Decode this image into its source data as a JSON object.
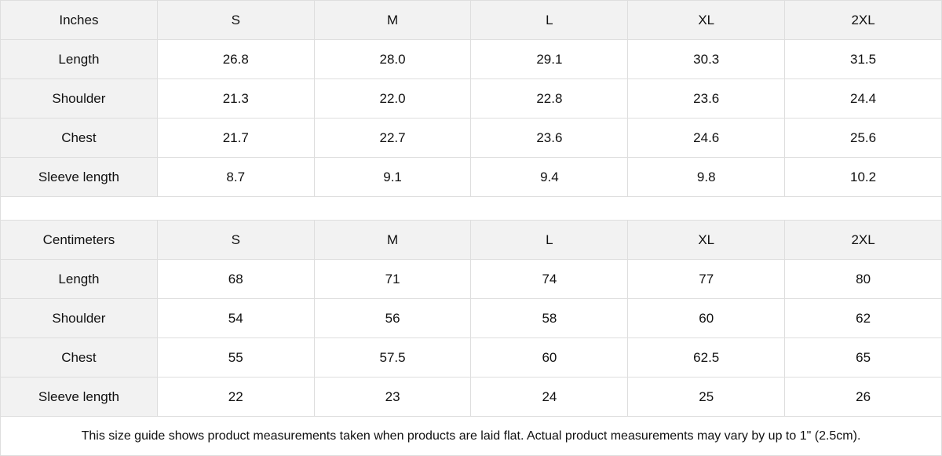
{
  "tables": [
    {
      "unit": "Inches",
      "sizes": [
        "S",
        "M",
        "L",
        "XL",
        "2XL"
      ],
      "rows": [
        {
          "label": "Length",
          "values": [
            "26.8",
            "28.0",
            "29.1",
            "30.3",
            "31.5"
          ]
        },
        {
          "label": "Shoulder",
          "values": [
            "21.3",
            "22.0",
            "22.8",
            "23.6",
            "24.4"
          ]
        },
        {
          "label": "Chest",
          "values": [
            "21.7",
            "22.7",
            "23.6",
            "24.6",
            "25.6"
          ]
        },
        {
          "label": "Sleeve length",
          "values": [
            "8.7",
            "9.1",
            "9.4",
            "9.8",
            "10.2"
          ]
        }
      ]
    },
    {
      "unit": "Centimeters",
      "sizes": [
        "S",
        "M",
        "L",
        "XL",
        "2XL"
      ],
      "rows": [
        {
          "label": "Length",
          "values": [
            "68",
            "71",
            "74",
            "77",
            "80"
          ]
        },
        {
          "label": "Shoulder",
          "values": [
            "54",
            "56",
            "58",
            "60",
            "62"
          ]
        },
        {
          "label": "Chest",
          "values": [
            "55",
            "57.5",
            "60",
            "62.5",
            "65"
          ]
        },
        {
          "label": "Sleeve length",
          "values": [
            "22",
            "23",
            "24",
            "25",
            "26"
          ]
        }
      ]
    }
  ],
  "footer": "This size guide shows product measurements taken when products are laid flat.  Actual product measurements may vary by up to 1\" (2.5cm).",
  "colors": {
    "header_bg": "#f2f2f2",
    "border": "#dedede"
  }
}
